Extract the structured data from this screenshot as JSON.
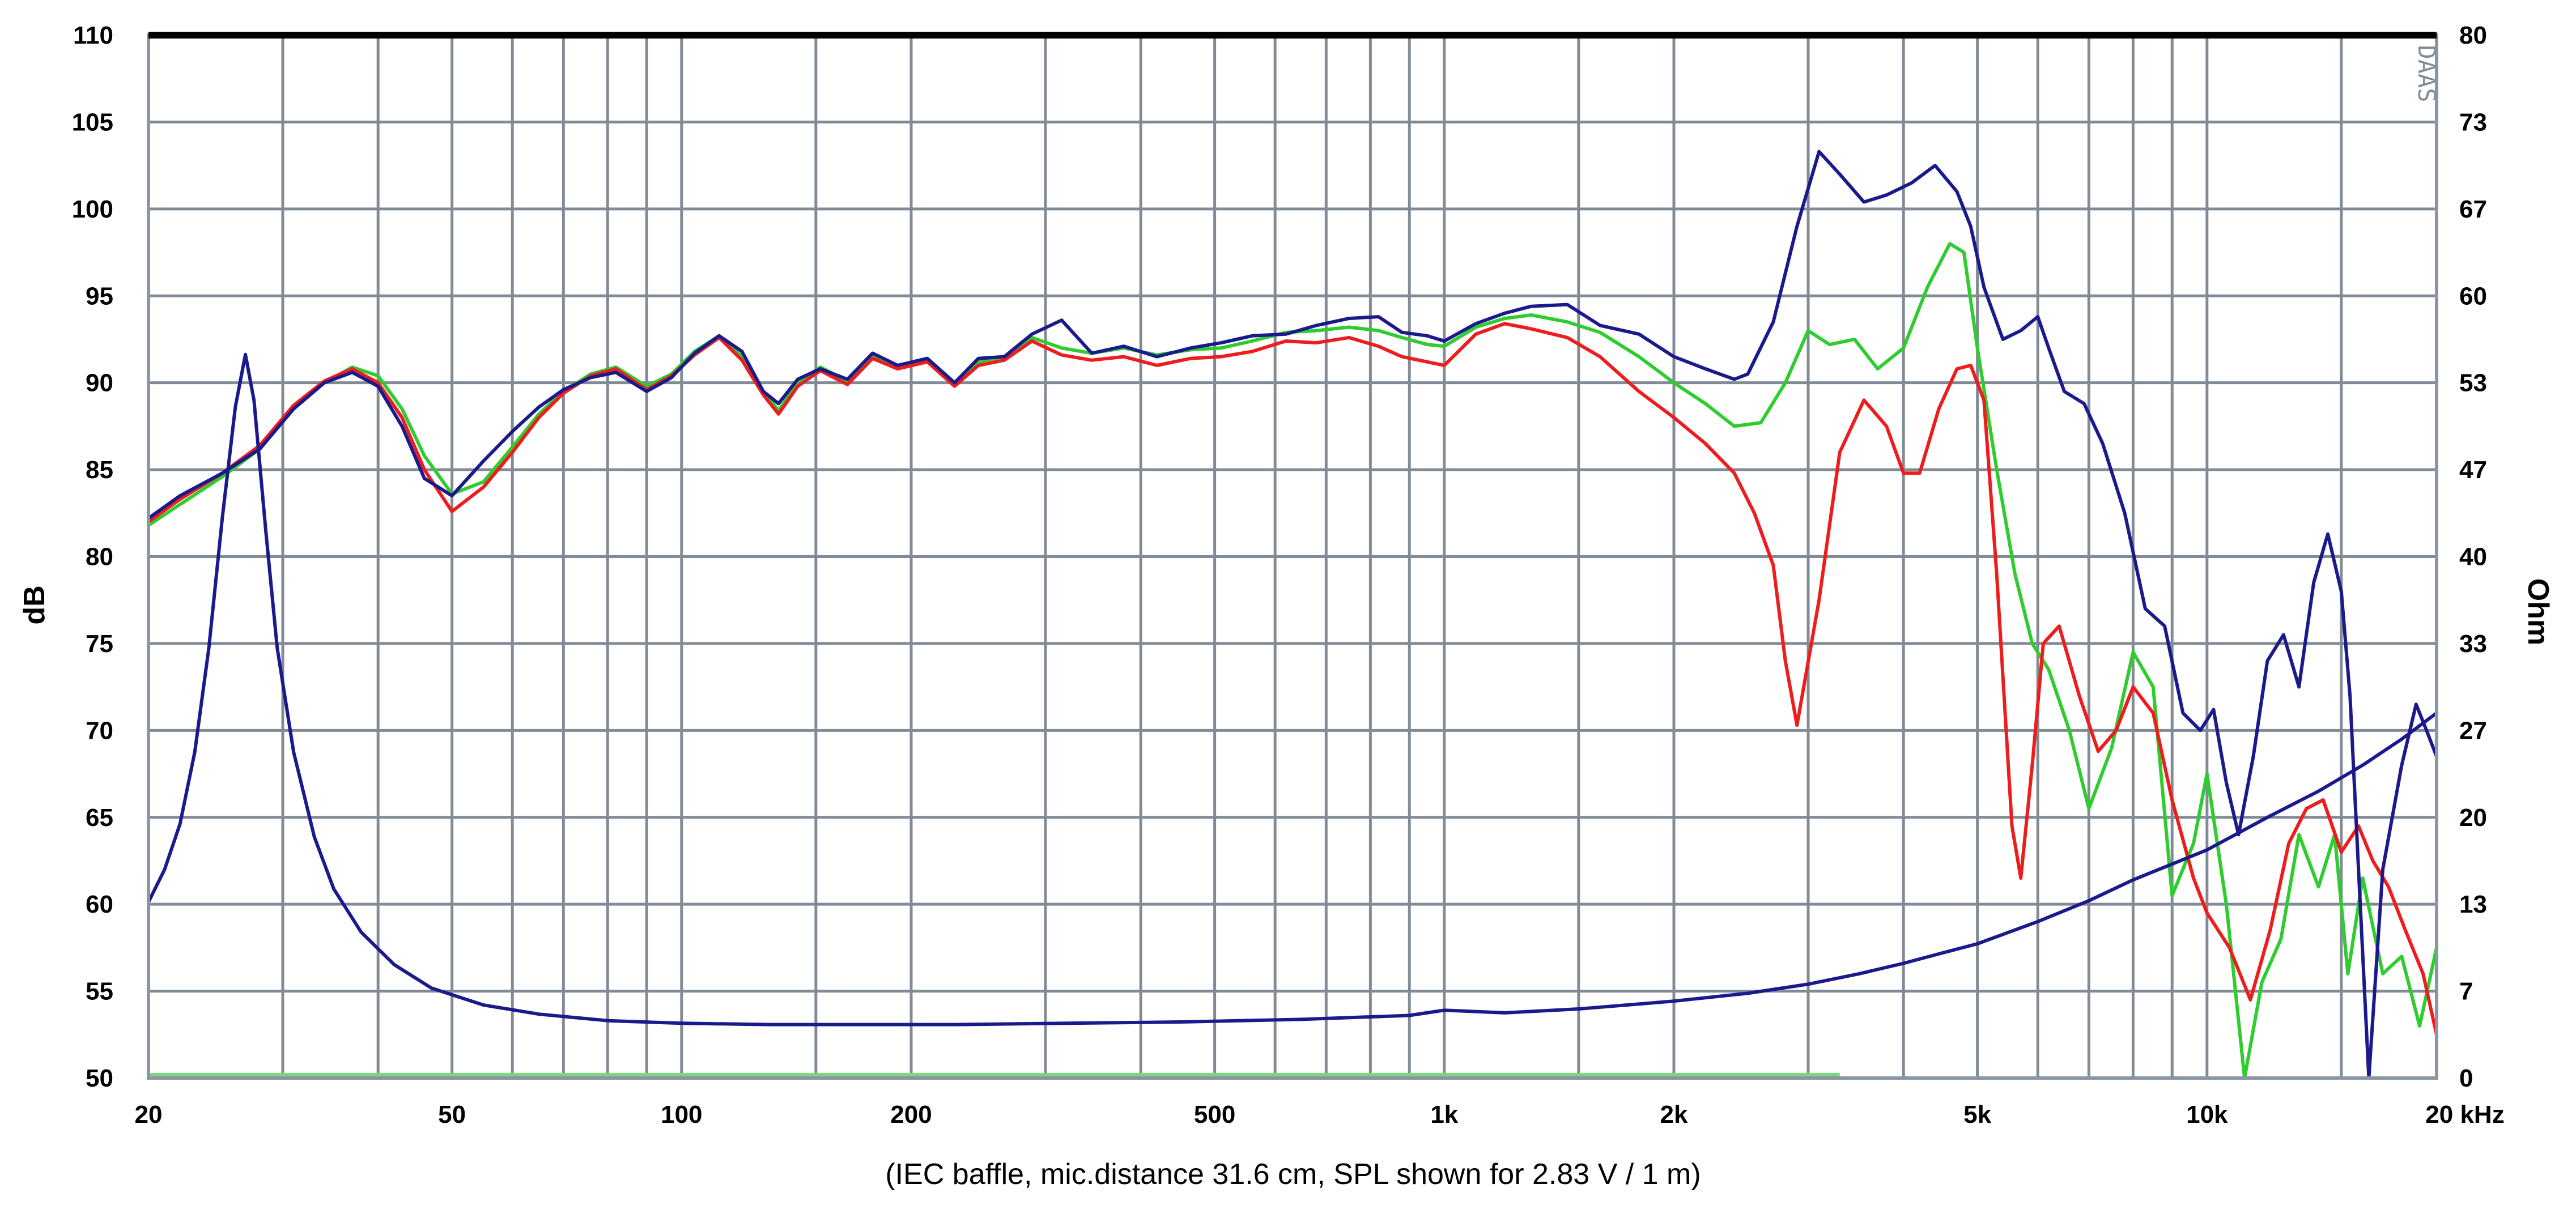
{
  "chart_data": {
    "type": "line",
    "caption": "(IEC baffle, mic.distance 31.6 cm, SPL shown for 2.83 V / 1 m)",
    "ylabel_left": "dB",
    "ylabel_right": "Ohm",
    "logo": "DAAS",
    "x_scale": "log",
    "xlim": [
      20,
      20000
    ],
    "ylim_left": [
      50,
      110
    ],
    "ylim_right": [
      0,
      80
    ],
    "grid": true,
    "colors": {
      "grid": "#818b96",
      "frame": "#000000",
      "on_axis": "#1a1a8c",
      "off_axis_30": "#2ecc2e",
      "off_axis_60": "#ee1c1c",
      "impedance": "#1a1a8c",
      "baseline": "#7cd87c"
    },
    "x_ticks": [
      {
        "value": 20,
        "label": "20"
      },
      {
        "value": 50,
        "label": "50"
      },
      {
        "value": 100,
        "label": "100"
      },
      {
        "value": 200,
        "label": "200"
      },
      {
        "value": 500,
        "label": "500"
      },
      {
        "value": 1000,
        "label": "1k"
      },
      {
        "value": 2000,
        "label": "2k"
      },
      {
        "value": 5000,
        "label": "5k"
      },
      {
        "value": 10000,
        "label": "10k"
      },
      {
        "value": 20000,
        "label": "20 kHz"
      }
    ],
    "x_grid": [
      30,
      40,
      60,
      70,
      80,
      90,
      150,
      300,
      400,
      600,
      700,
      800,
      900,
      1500,
      3000,
      4000,
      6000,
      7000,
      8000,
      9000,
      15000
    ],
    "y_ticks_left": [
      "110",
      "105",
      "100",
      "95",
      "90",
      "85",
      "80",
      "75",
      "70",
      "65",
      "60",
      "55",
      "50"
    ],
    "y_ticks_right": [
      "80",
      "73",
      "67",
      "60",
      "53",
      "47",
      "40",
      "33",
      "27",
      "20",
      "13",
      "7",
      "0"
    ],
    "series": [
      {
        "key": "off_axis_30",
        "axis": "left",
        "x": [
          20,
          22,
          25,
          28,
          31,
          34,
          37,
          40,
          43,
          46,
          50,
          55,
          60,
          65,
          70,
          76,
          82,
          90,
          97,
          104,
          112,
          120,
          128,
          134,
          142,
          152,
          165,
          178,
          192,
          210,
          228,
          245,
          265,
          288,
          315,
          345,
          380,
          420,
          465,
          510,
          560,
          620,
          680,
          750,
          820,
          880,
          950,
          1000,
          1100,
          1200,
          1300,
          1450,
          1600,
          1800,
          2000,
          2200,
          2400,
          2600,
          2800,
          3000,
          3200,
          3450,
          3700,
          4000,
          4300,
          4600,
          4800,
          5000,
          5300,
          5600,
          5900,
          6200,
          6600,
          7000,
          7500,
          8000,
          8500,
          9000,
          9600,
          10000,
          10600,
          11200,
          11800,
          12500,
          13200,
          14000,
          14700,
          15300,
          16000,
          17000,
          18000,
          19000,
          20000
        ],
        "y": [
          81.8,
          83.0,
          84.6,
          86.2,
          88.5,
          90.0,
          90.9,
          90.4,
          88.5,
          85.8,
          83.6,
          84.3,
          86.3,
          88.2,
          89.5,
          90.5,
          90.9,
          89.8,
          90.5,
          91.8,
          92.7,
          91.5,
          89.5,
          88.4,
          90.0,
          90.9,
          90.1,
          91.6,
          91.0,
          91.4,
          90.0,
          91.2,
          91.5,
          92.6,
          92.0,
          91.7,
          92.0,
          91.6,
          91.9,
          92.0,
          92.4,
          92.9,
          93.0,
          93.2,
          93.0,
          92.6,
          92.2,
          92.1,
          93.2,
          93.7,
          93.9,
          93.5,
          92.9,
          91.5,
          90.0,
          88.8,
          87.5,
          87.7,
          90.0,
          93.0,
          92.2,
          92.5,
          90.8,
          92.0,
          95.5,
          98.0,
          97.5,
          92.0,
          85.0,
          79.0,
          75.0,
          73.5,
          70.0,
          65.5,
          69.0,
          74.5,
          72.5,
          60.5,
          63.5,
          67.5,
          60.0,
          50.0,
          55.5,
          58.0,
          64.0,
          61.0,
          64.0,
          56.0,
          61.5,
          56.0,
          57.0,
          53.0,
          57.5
        ]
      },
      {
        "key": "off_axis_60",
        "axis": "left",
        "x": [
          20,
          22,
          25,
          28,
          31,
          34,
          37,
          40,
          43,
          46,
          50,
          55,
          60,
          65,
          70,
          76,
          82,
          90,
          97,
          104,
          112,
          120,
          128,
          134,
          142,
          152,
          165,
          178,
          192,
          210,
          228,
          245,
          265,
          288,
          315,
          345,
          380,
          420,
          465,
          510,
          560,
          620,
          680,
          750,
          820,
          880,
          950,
          1000,
          1100,
          1200,
          1300,
          1450,
          1600,
          1800,
          2000,
          2200,
          2400,
          2550,
          2700,
          2800,
          2900,
          3100,
          3300,
          3550,
          3800,
          4000,
          4200,
          4450,
          4700,
          4900,
          5100,
          5300,
          5550,
          5700,
          5900,
          6100,
          6400,
          6800,
          7200,
          7600,
          8000,
          8500,
          9000,
          9600,
          10000,
          10700,
          11400,
          12100,
          12800,
          13500,
          14200,
          15000,
          15800,
          16500,
          17300,
          18200,
          19200,
          20000
        ],
        "y": [
          82.0,
          83.3,
          84.8,
          86.4,
          88.7,
          90.1,
          90.8,
          90.0,
          88.0,
          85.0,
          82.6,
          84.0,
          86.0,
          88.0,
          89.4,
          90.4,
          90.8,
          89.6,
          90.4,
          91.6,
          92.6,
          91.3,
          89.3,
          88.2,
          89.8,
          90.7,
          89.9,
          91.4,
          90.8,
          91.2,
          89.8,
          91.0,
          91.3,
          92.4,
          91.6,
          91.3,
          91.5,
          91.0,
          91.4,
          91.5,
          91.8,
          92.4,
          92.3,
          92.6,
          92.1,
          91.5,
          91.2,
          91.0,
          92.8,
          93.4,
          93.1,
          92.6,
          91.5,
          89.5,
          88.0,
          86.5,
          84.8,
          82.5,
          79.5,
          74.0,
          70.3,
          77.5,
          86.0,
          89.0,
          87.5,
          84.8,
          84.8,
          88.5,
          90.8,
          91.0,
          89.0,
          79.0,
          64.5,
          61.5,
          68.0,
          75.0,
          76.0,
          72.0,
          68.8,
          70.0,
          72.5,
          71.0,
          66.0,
          61.5,
          59.5,
          57.5,
          54.5,
          58.5,
          63.5,
          65.5,
          66.0,
          63.0,
          64.5,
          62.5,
          61.0,
          58.5,
          56.0,
          52.5
        ]
      },
      {
        "key": "on_axis",
        "axis": "left",
        "x": [
          20,
          22,
          25,
          28,
          31,
          34,
          37,
          40,
          43,
          46,
          50,
          55,
          60,
          65,
          70,
          76,
          82,
          90,
          97,
          104,
          112,
          120,
          128,
          134,
          142,
          152,
          165,
          178,
          192,
          210,
          228,
          245,
          265,
          288,
          315,
          345,
          380,
          420,
          465,
          510,
          560,
          620,
          680,
          750,
          820,
          880,
          950,
          1000,
          1100,
          1200,
          1300,
          1450,
          1600,
          1800,
          2000,
          2200,
          2400,
          2500,
          2700,
          2900,
          3100,
          3300,
          3550,
          3800,
          4100,
          4400,
          4700,
          4900,
          5100,
          5400,
          5700,
          6000,
          6200,
          6500,
          6900,
          7300,
          7800,
          8300,
          8800,
          9300,
          9800,
          10200,
          10600,
          11000,
          11500,
          12000,
          12600,
          13200,
          13800,
          14400,
          15000,
          15400,
          15800,
          16300,
          17000,
          18000,
          18800,
          19400,
          20000
        ],
        "y": [
          82.2,
          83.5,
          84.8,
          86.2,
          88.5,
          90.0,
          90.6,
          89.8,
          87.5,
          84.5,
          83.5,
          85.5,
          87.2,
          88.6,
          89.6,
          90.3,
          90.6,
          89.5,
          90.3,
          91.7,
          92.7,
          91.8,
          89.5,
          88.8,
          90.2,
          90.8,
          90.2,
          91.7,
          91.0,
          91.4,
          90.0,
          91.4,
          91.5,
          92.8,
          93.6,
          91.7,
          92.1,
          91.5,
          92.0,
          92.3,
          92.7,
          92.8,
          93.3,
          93.7,
          93.8,
          92.9,
          92.7,
          92.4,
          93.4,
          94.0,
          94.4,
          94.5,
          93.3,
          92.8,
          91.5,
          90.8,
          90.2,
          90.5,
          93.5,
          99.0,
          103.3,
          102.0,
          100.4,
          100.8,
          101.5,
          102.5,
          101.0,
          99.0,
          95.5,
          92.5,
          93.0,
          93.8,
          92.0,
          89.5,
          88.8,
          86.5,
          82.5,
          77.0,
          76.0,
          71.0,
          70.0,
          71.2,
          67.0,
          64.0,
          68.5,
          74.0,
          75.5,
          72.5,
          78.5,
          81.3,
          78.0,
          72.0,
          62.0,
          50.0,
          62.0,
          68.0,
          71.5,
          70.0,
          68.5
        ]
      },
      {
        "key": "impedance",
        "axis": "right",
        "x": [
          20,
          21,
          22,
          23,
          24,
          25,
          26,
          26.8,
          27.5,
          28.5,
          29.5,
          31,
          33,
          35,
          38,
          42,
          47,
          55,
          65,
          80,
          100,
          130,
          170,
          230,
          320,
          450,
          650,
          900,
          1000,
          1200,
          1500,
          2000,
          2500,
          3000,
          3500,
          4000,
          4500,
          5000,
          6000,
          7000,
          8000,
          10000,
          12000,
          14000,
          16000,
          18000,
          20000
        ],
        "y": [
          13.5,
          16.0,
          19.5,
          25.0,
          33.0,
          43.0,
          51.5,
          55.5,
          52.0,
          42.0,
          33.0,
          25.0,
          18.5,
          14.5,
          11.2,
          8.7,
          6.9,
          5.6,
          4.9,
          4.4,
          4.2,
          4.1,
          4.1,
          4.1,
          4.2,
          4.3,
          4.5,
          4.8,
          5.2,
          5.0,
          5.3,
          5.9,
          6.5,
          7.2,
          8.0,
          8.8,
          9.6,
          10.3,
          12.0,
          13.6,
          15.2,
          17.5,
          20.0,
          22.0,
          24.0,
          26.0,
          28.0
        ]
      }
    ]
  }
}
